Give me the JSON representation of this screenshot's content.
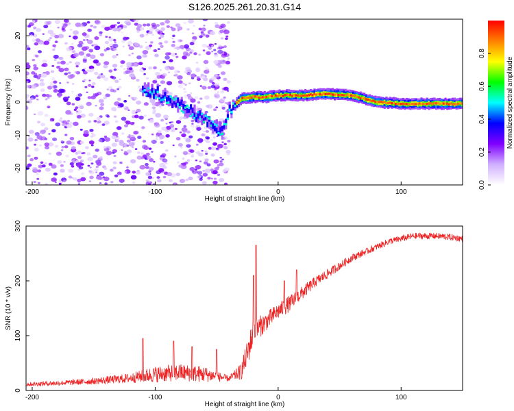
{
  "chart_data": [
    {
      "type": "heatmap",
      "title": "S126.2025.261.20.31.G14",
      "xlabel": "Height of straight line (km)",
      "ylabel": "Frequency (Hz)",
      "xlim": [
        -205,
        150
      ],
      "ylim": [
        -25,
        25
      ],
      "xticks": [
        -200,
        -100,
        0,
        100
      ],
      "yticks": [
        -20,
        -10,
        0,
        10,
        20
      ],
      "colorbar": {
        "label": "Normalized spectral amplitude",
        "range": [
          0.0,
          1.0
        ],
        "ticks": [
          "0.0",
          "0.2",
          "0.4",
          "0.6",
          "0.8"
        ],
        "colormap": [
          "#ffffff",
          "#d0b0ff",
          "#8000ff",
          "#0000ff",
          "#00ffff",
          "#00ff00",
          "#ffff00",
          "#ff8000",
          "#ff0000"
        ]
      },
      "ridge": {
        "x": [
          -110,
          -100,
          -90,
          -80,
          -70,
          -60,
          -50,
          -45,
          -40,
          -35,
          -30,
          -20,
          -10,
          0,
          20,
          40,
          60,
          80,
          100,
          120,
          150
        ],
        "freq": [
          4,
          3,
          1,
          -1,
          -3,
          -5,
          -8,
          -9,
          -3,
          -1,
          1,
          1.5,
          1.5,
          2,
          2,
          2.5,
          2,
          0,
          -0.5,
          -0.5,
          -0.5
        ]
      },
      "scatter": {
        "x_range": [
          -205,
          -40
        ],
        "freq_range": [
          -25,
          25
        ],
        "amplitude_range": [
          0.0,
          0.25
        ]
      }
    },
    {
      "type": "line",
      "title": "",
      "xlabel": "Height of straight line (km)",
      "ylabel": "SNR (10 * v/v)",
      "xlim": [
        -205,
        150
      ],
      "ylim": [
        0,
        300
      ],
      "xticks": [
        -200,
        -100,
        0,
        100
      ],
      "yticks": [
        0,
        100,
        200,
        300
      ],
      "series": [
        {
          "name": "SNR",
          "color": "#ee2222",
          "x": [
            -205,
            -180,
            -150,
            -120,
            -100,
            -80,
            -60,
            -40,
            -30,
            -25,
            -20,
            -15,
            -10,
            0,
            10,
            20,
            30,
            40,
            50,
            60,
            70,
            80,
            90,
            100,
            110,
            120,
            130,
            140,
            150
          ],
          "values": [
            10,
            12,
            15,
            20,
            25,
            28,
            25,
            20,
            30,
            60,
            100,
            110,
            120,
            140,
            155,
            175,
            195,
            210,
            225,
            240,
            250,
            260,
            270,
            275,
            280,
            280,
            280,
            278,
            275
          ],
          "noise": [
            8,
            9,
            12,
            18,
            30,
            32,
            30,
            10,
            30,
            50,
            55,
            40,
            35,
            30,
            30,
            25,
            20,
            18,
            15,
            14,
            12,
            12,
            12,
            12,
            12,
            12,
            12,
            12,
            12
          ],
          "spikes": [
            [
              -18,
              265
            ],
            [
              -20,
              210
            ],
            [
              -110,
              95
            ],
            [
              -85,
              90
            ],
            [
              -70,
              80
            ],
            [
              -50,
              75
            ],
            [
              15,
              220
            ],
            [
              5,
              200
            ]
          ]
        }
      ]
    }
  ]
}
